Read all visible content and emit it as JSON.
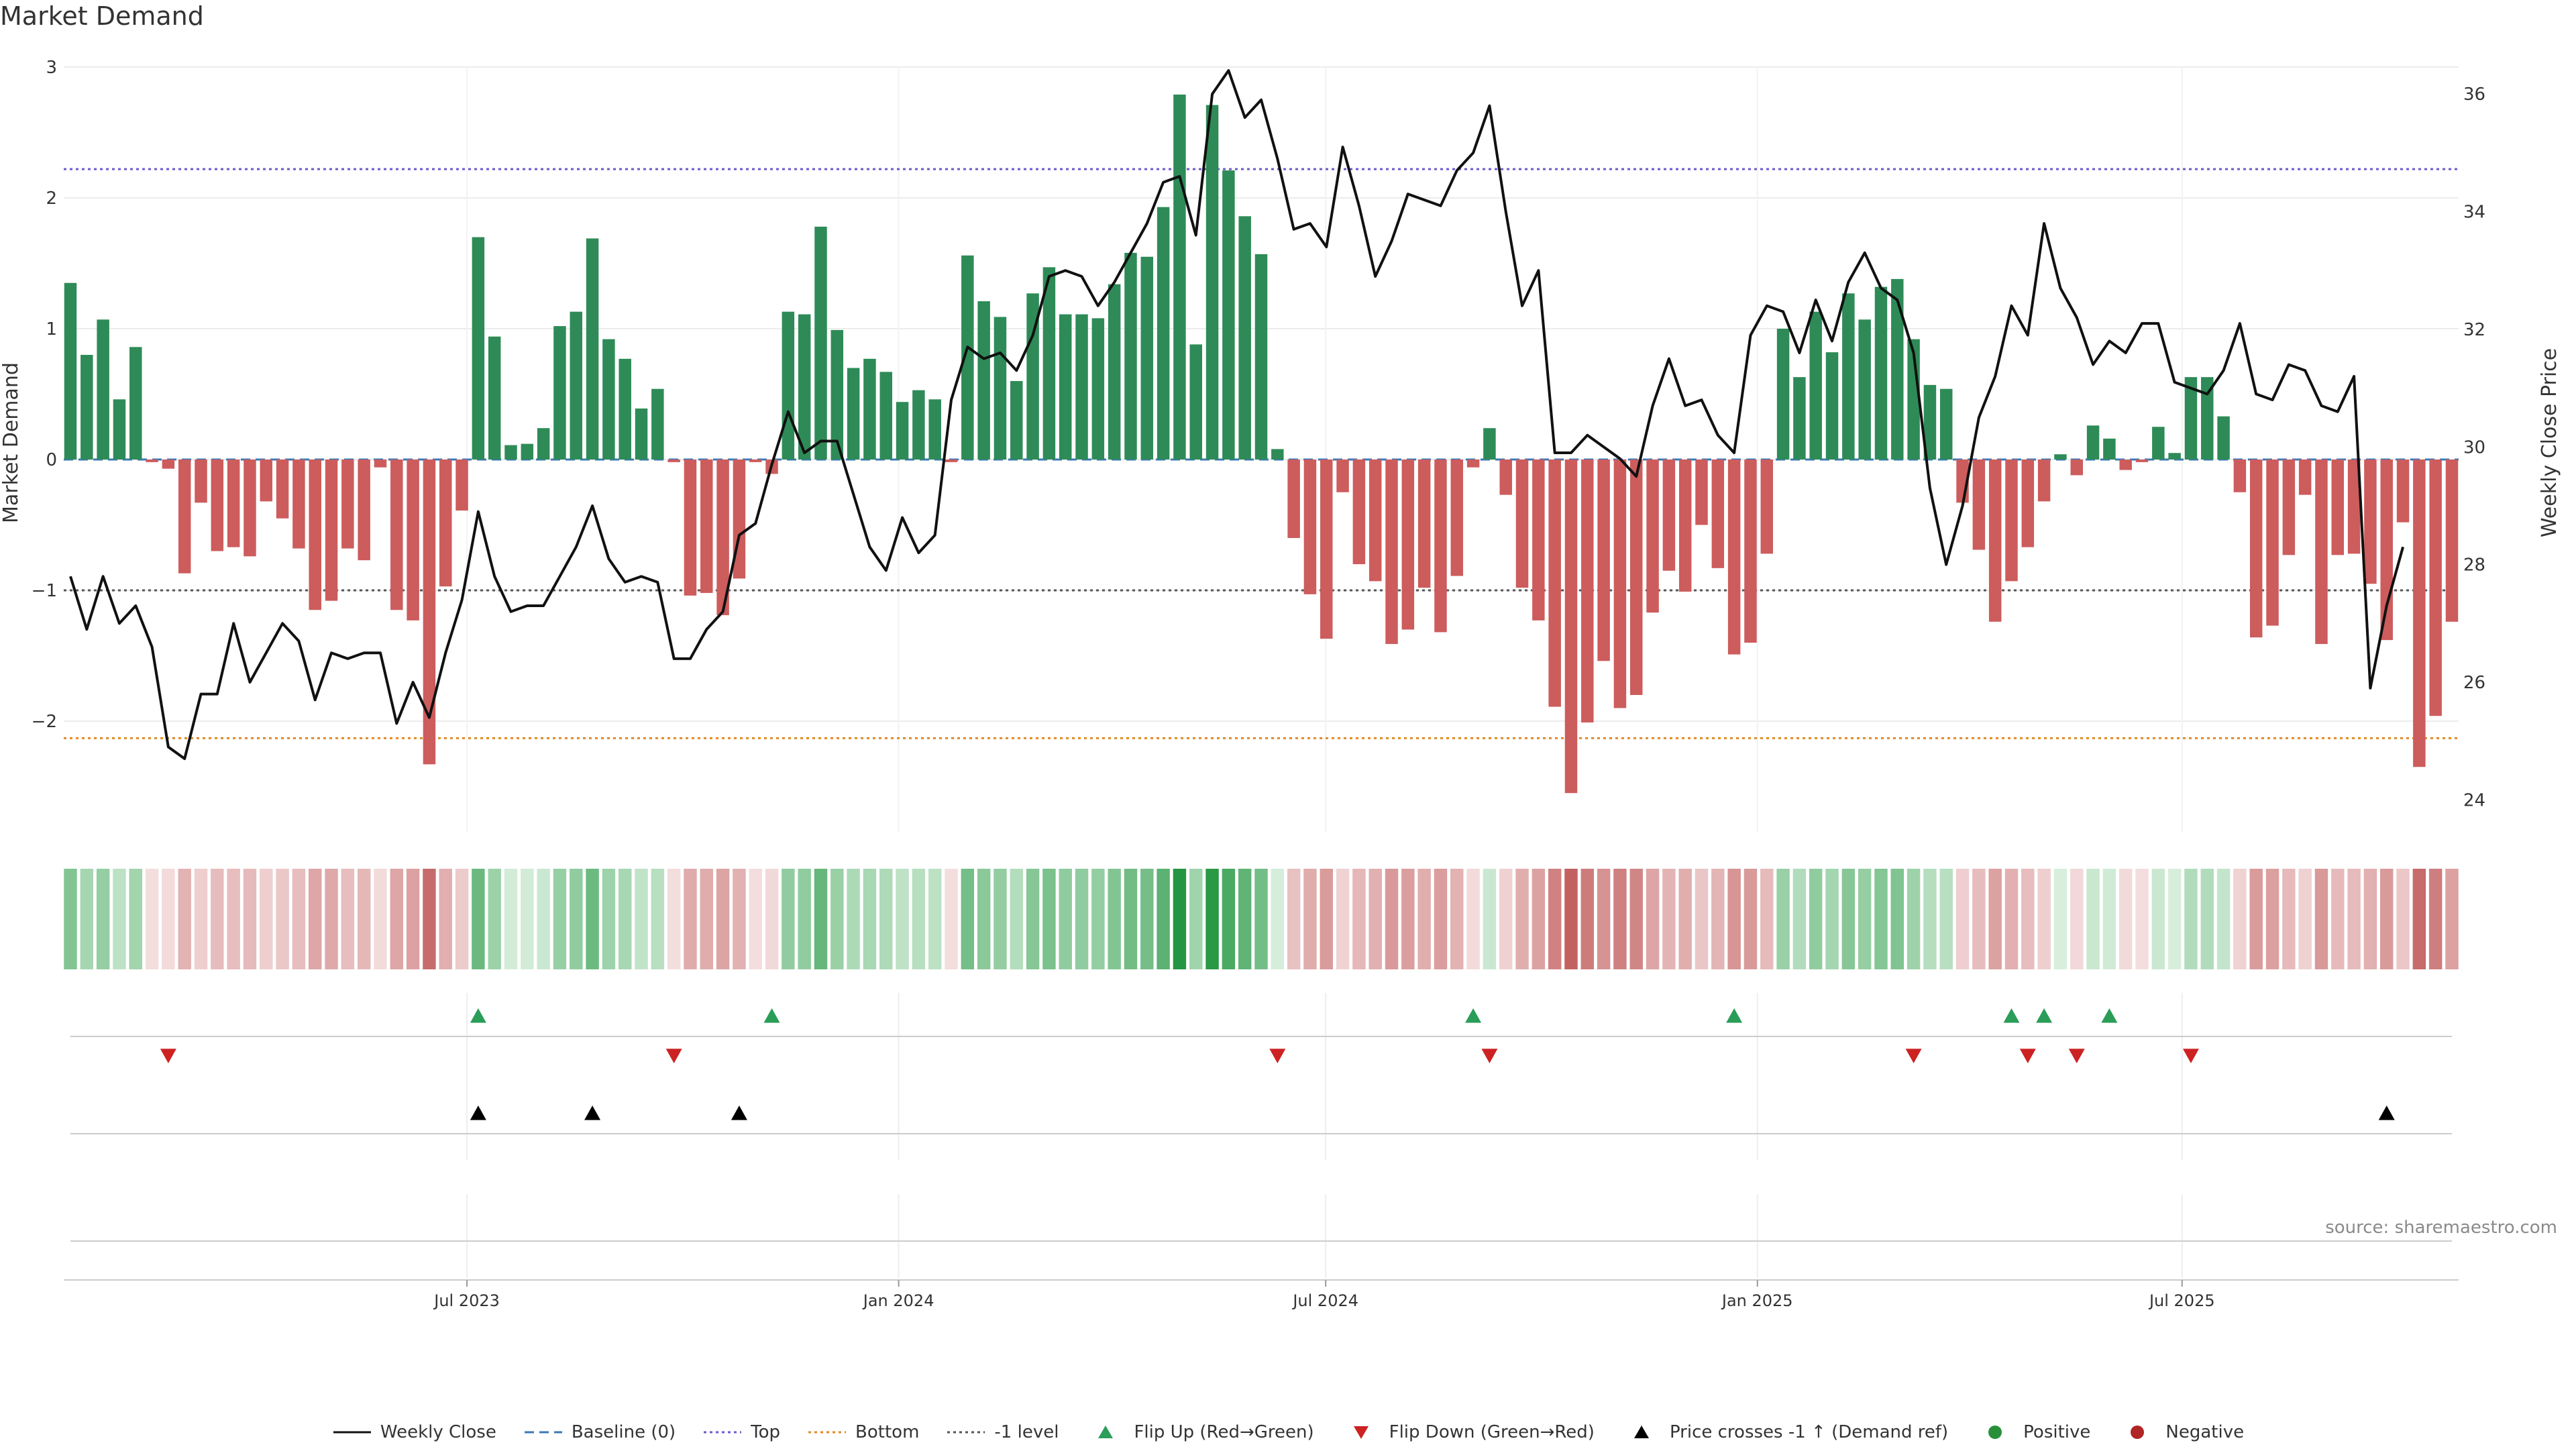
{
  "title": "Market Demand",
  "source": "source: sharemaestro.com",
  "legend": [
    {
      "label": "Weekly Close",
      "symbol": "line",
      "color": "#111111",
      "dash": ""
    },
    {
      "label": "Baseline (0)",
      "symbol": "line",
      "color": "#3a78b8",
      "dash": "14,8"
    },
    {
      "label": "Top",
      "symbol": "line",
      "color": "#6a5acd",
      "dash": "4,5"
    },
    {
      "label": "Bottom",
      "symbol": "line",
      "color": "#e08a24",
      "dash": "4,5"
    },
    {
      "label": "-1 level",
      "symbol": "line",
      "color": "#555555",
      "dash": "4,5"
    },
    {
      "label": "Flip Up (Red→Green)",
      "symbol": "tri-up",
      "color": "#2a9d58"
    },
    {
      "label": "Flip Down (Green→Red)",
      "symbol": "tri-down",
      "color": "#cc2222"
    },
    {
      "label": "Price crosses -1 ↑ (Demand ref)",
      "symbol": "tri-up",
      "color": "#000000"
    },
    {
      "label": "Positive",
      "symbol": "dot",
      "color": "#2a8f3a"
    },
    {
      "label": "Negative",
      "symbol": "dot",
      "color": "#b02525"
    }
  ],
  "chart_data": {
    "type": "bar",
    "title": "Market Demand",
    "ylabel": "Market Demand",
    "y2label": "Weekly Close Price",
    "ylim": [
      -2.85,
      3.0
    ],
    "yticks": [
      3,
      2,
      1,
      0,
      -1,
      -2
    ],
    "ytick_labels": [
      "3",
      "2",
      "1",
      "0",
      "−1",
      "−2"
    ],
    "y2lim": [
      23.4,
      36.8
    ],
    "y2ticks": [
      36,
      34,
      32,
      30,
      28,
      26,
      24
    ],
    "x_start": "2023-01-13",
    "x_end": "2025-10-24",
    "xticks": [
      "2023-07-01",
      "2024-01-01",
      "2024-07-01",
      "2025-01-01",
      "2025-07-01"
    ],
    "xtick_labels": [
      "Jul 2023",
      "Jan 2024",
      "Jul 2024",
      "Jan 2025",
      "Jul 2025"
    ],
    "reference_lines": {
      "top": 2.22,
      "bottom": -2.13,
      "minus_one": -1.0,
      "baseline": 0
    },
    "colors": {
      "positive": "#2e8b57",
      "negative": "#cd5c5c",
      "price": "#111111"
    },
    "demand": [
      1.35,
      0.8,
      1.07,
      0.46,
      0.86,
      -0.02,
      -0.07,
      -0.87,
      -0.33,
      -0.7,
      -0.67,
      -0.74,
      -0.32,
      -0.45,
      -0.68,
      -1.15,
      -1.08,
      -0.68,
      -0.77,
      -0.06,
      -1.15,
      -1.23,
      -2.33,
      -0.97,
      -0.39,
      1.7,
      0.94,
      0.11,
      0.12,
      0.24,
      1.02,
      1.13,
      1.69,
      0.92,
      0.77,
      0.39,
      0.54,
      -0.02,
      -1.04,
      -1.02,
      -1.19,
      -0.91,
      -0.02,
      -0.11,
      1.13,
      1.11,
      1.78,
      0.99,
      0.7,
      0.77,
      0.67,
      0.44,
      0.53,
      0.46,
      -0.02,
      1.56,
      1.21,
      1.09,
      0.6,
      1.27,
      1.47,
      1.11,
      1.11,
      1.08,
      1.34,
      1.58,
      1.55,
      1.93,
      2.79,
      0.88,
      2.71,
      2.21,
      1.86,
      1.57,
      0.08,
      -0.6,
      -1.03,
      -1.37,
      -0.25,
      -0.8,
      -0.93,
      -1.41,
      -1.3,
      -0.98,
      -1.32,
      -0.89,
      -0.06,
      0.24,
      -0.27,
      -0.98,
      -1.23,
      -1.89,
      -2.55,
      -2.01,
      -1.54,
      -1.9,
      -1.8,
      -1.17,
      -0.85,
      -1.01,
      -0.5,
      -0.83,
      -1.49,
      -1.4,
      -0.72,
      1.0,
      0.63,
      1.13,
      0.82,
      1.27,
      1.07,
      1.32,
      1.38,
      0.92,
      0.57,
      0.54,
      -0.33,
      -0.69,
      -1.24,
      -0.93,
      -0.67,
      -0.32,
      0.04,
      -0.12,
      0.26,
      0.16,
      -0.08,
      -0.02,
      0.25,
      0.05,
      0.63,
      0.63,
      0.33,
      -0.25,
      -1.36,
      -1.27,
      -0.73,
      -0.27,
      -1.41,
      -0.73,
      -0.72,
      -0.95,
      -1.38,
      -0.48,
      -2.35,
      -1.96,
      -1.24
    ],
    "price": [
      27.8,
      26.9,
      27.8,
      27.0,
      27.3,
      26.6,
      24.9,
      24.7,
      25.8,
      25.8,
      27.0,
      26.0,
      26.5,
      27.0,
      26.7,
      25.7,
      26.5,
      26.4,
      26.5,
      26.5,
      25.3,
      26.0,
      25.4,
      26.5,
      27.4,
      28.9,
      27.8,
      27.2,
      27.3,
      27.3,
      27.8,
      28.3,
      29.0,
      28.1,
      27.7,
      27.8,
      27.7,
      26.4,
      26.4,
      26.9,
      27.2,
      28.5,
      28.7,
      29.7,
      30.6,
      29.9,
      30.1,
      30.1,
      29.2,
      28.3,
      27.9,
      28.8,
      28.2,
      28.5,
      30.8,
      31.7,
      31.5,
      31.6,
      31.3,
      31.9,
      32.9,
      33.0,
      32.9,
      32.4,
      32.8,
      33.3,
      33.8,
      34.5,
      34.6,
      33.6,
      36.0,
      36.4,
      35.6,
      35.9,
      34.9,
      33.7,
      33.8,
      33.4,
      35.1,
      34.1,
      32.9,
      33.5,
      34.3,
      34.2,
      34.1,
      34.7,
      35.0,
      35.8,
      34.0,
      32.4,
      33.0,
      29.9,
      29.9,
      30.2,
      30.0,
      29.8,
      29.5,
      30.7,
      31.5,
      30.7,
      30.8,
      30.2,
      29.9,
      31.9,
      32.4,
      32.3,
      31.6,
      32.5,
      31.8,
      32.8,
      33.3,
      32.7,
      32.5,
      31.6,
      29.3,
      28.0,
      29.0,
      30.5,
      31.2,
      32.4,
      31.9,
      33.8,
      32.7,
      32.2,
      31.4,
      31.8,
      31.6,
      32.1,
      32.1,
      31.1,
      31.0,
      30.9,
      31.3,
      32.1,
      30.9,
      30.8,
      31.4,
      31.3,
      30.7,
      30.6,
      31.2,
      25.9,
      27.3,
      28.3
    ],
    "flip_up_weeks": [
      25,
      43,
      86,
      102,
      119,
      121,
      125
    ],
    "flip_down_weeks": [
      6,
      37,
      74,
      87,
      113,
      120,
      123,
      130
    ],
    "price_cross_weeks": [
      25,
      32,
      41,
      142
    ]
  }
}
